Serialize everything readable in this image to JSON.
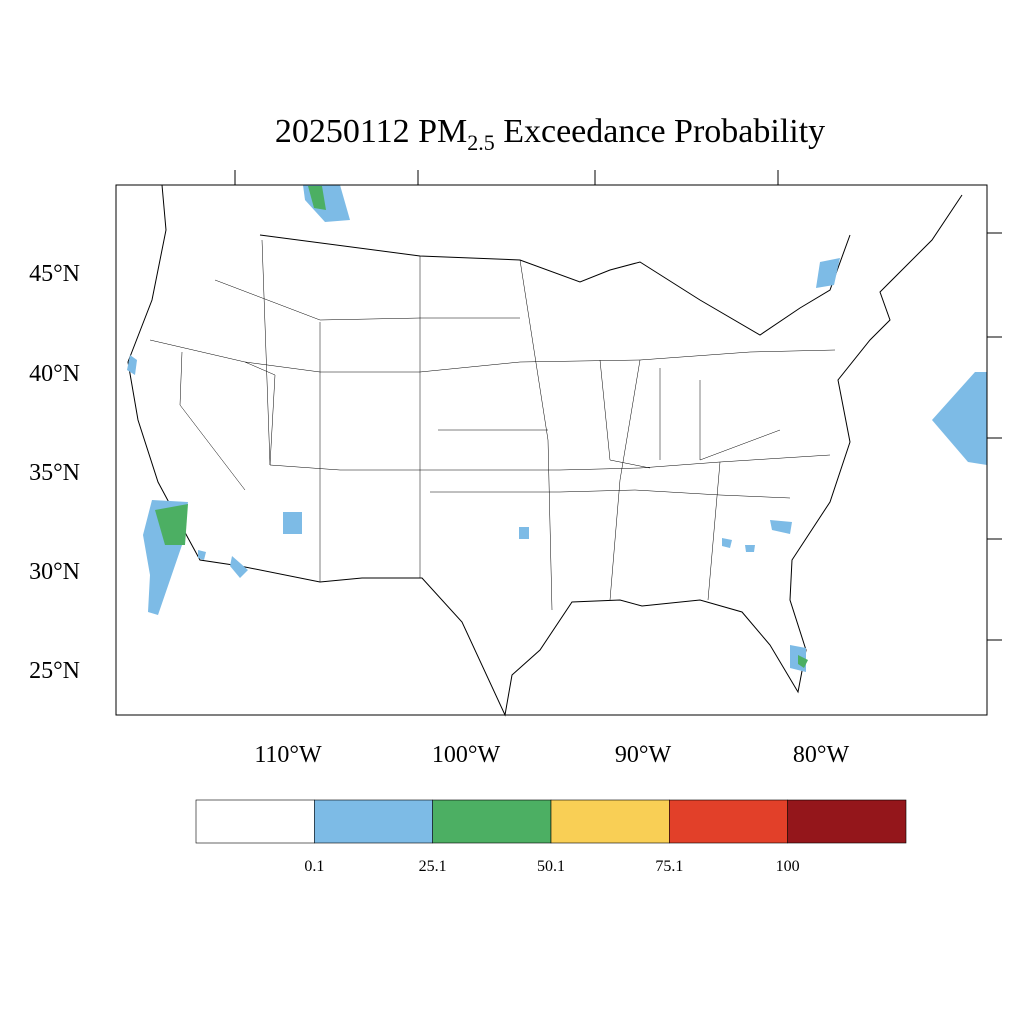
{
  "title": {
    "date": "20250112",
    "pollutant": "PM",
    "subscript": "2.5",
    "rest": "Exceedance Probability"
  },
  "lat_labels": [
    "45°N",
    "40°N",
    "35°N",
    "30°N",
    "25°N"
  ],
  "lon_labels": [
    "110°W",
    "100°W",
    "90°W",
    "80°W"
  ],
  "legend": {
    "colors": [
      "#ffffff",
      "#7dbbe6",
      "#4caf63",
      "#f9cf55",
      "#e24029",
      "#94161b"
    ],
    "labels": [
      0.1,
      25.1,
      50.1,
      75.1,
      100
    ]
  }
}
